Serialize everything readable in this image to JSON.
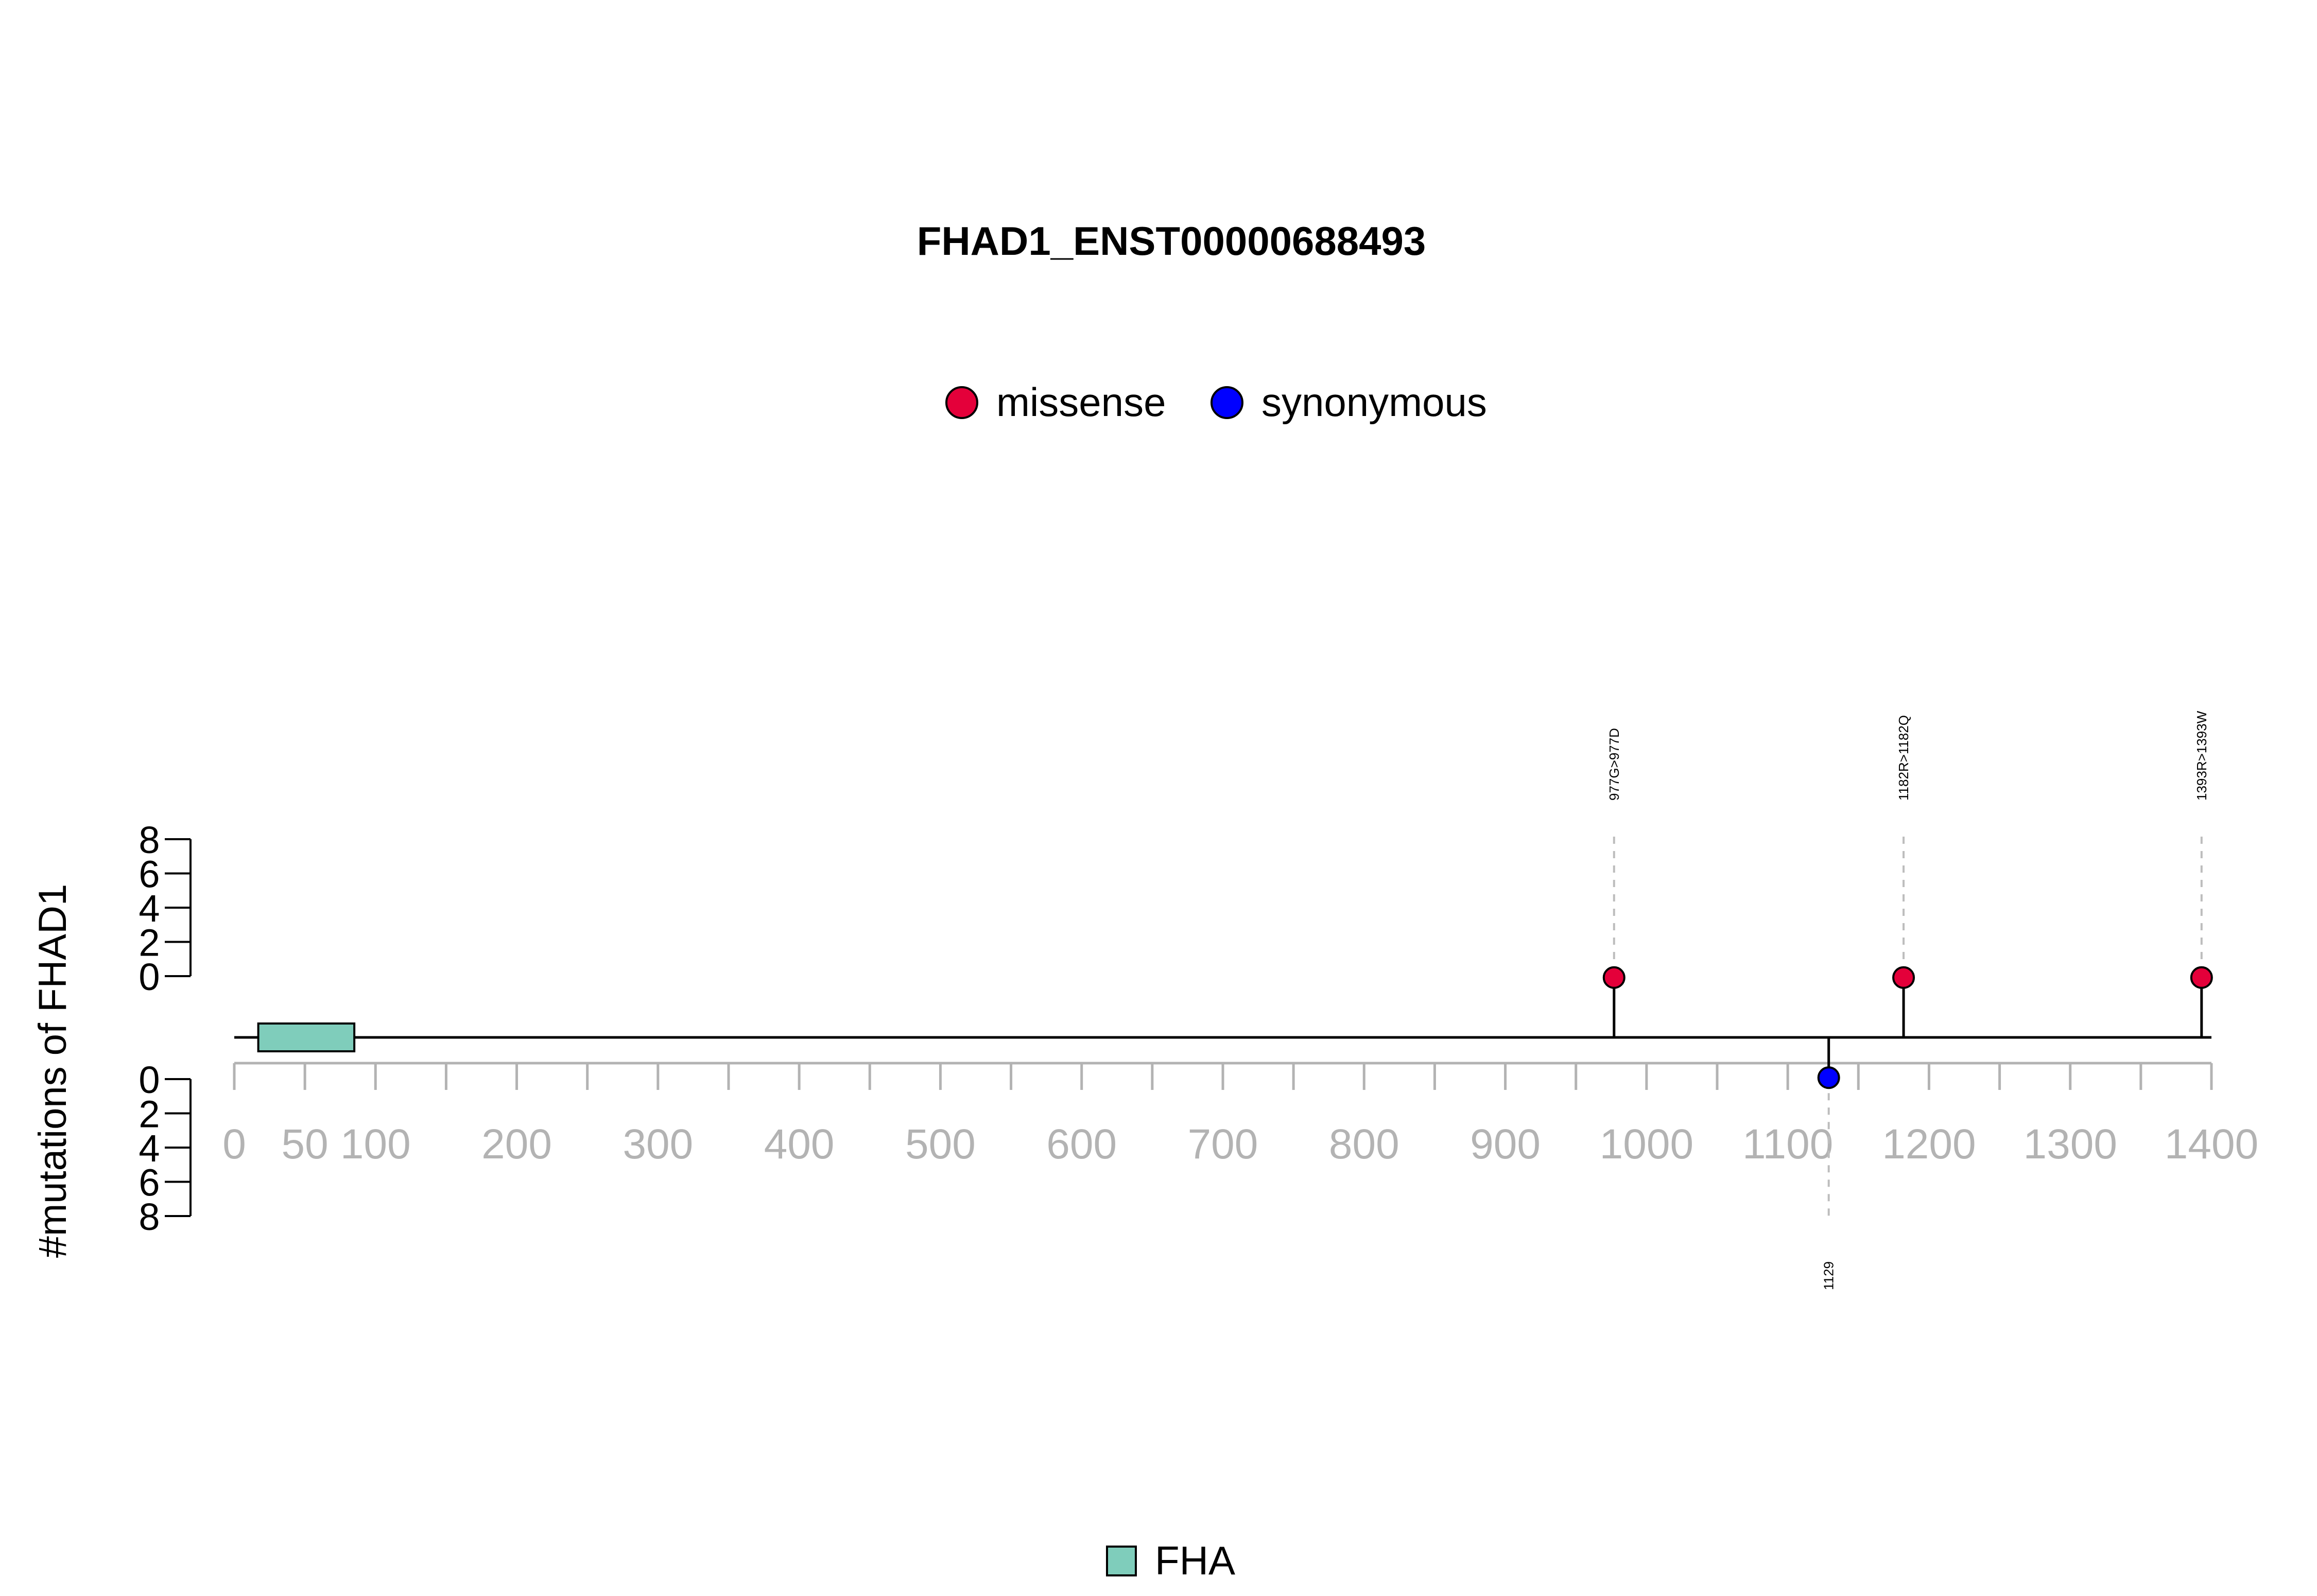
{
  "chart_data": {
    "type": "lollipop",
    "title": "FHAD1_ENST00000688493",
    "ylabel": "#mutations of FHAD1",
    "xlim": [
      0,
      1400
    ],
    "ylim": [
      0,
      8
    ],
    "x_ticks": [
      0,
      50,
      100,
      200,
      300,
      400,
      500,
      600,
      700,
      800,
      900,
      1000,
      1100,
      1200,
      1300,
      1400
    ],
    "x_minor_ticks": [
      150,
      250,
      350,
      450,
      550,
      650,
      750,
      850,
      950,
      1050,
      1150,
      1250,
      1350
    ],
    "y_ticks": [
      0,
      2,
      4,
      6,
      8
    ],
    "mutation_types": [
      {
        "name": "missense",
        "color": "#e4003a"
      },
      {
        "name": "synonymous",
        "color": "#0000ff"
      }
    ],
    "mutations": [
      {
        "position": 977,
        "count": 1,
        "type": "missense",
        "label": "977G>977D",
        "side": "up"
      },
      {
        "position": 1182,
        "count": 1,
        "type": "missense",
        "label": "1182R>1182Q",
        "side": "up"
      },
      {
        "position": 1393,
        "count": 1,
        "type": "missense",
        "label": "1393R>1393W",
        "side": "up"
      },
      {
        "position": 1129,
        "count": 1,
        "type": "synonymous",
        "label": "1129",
        "side": "down"
      }
    ],
    "domains": [
      {
        "name": "FHA",
        "start": 17,
        "end": 85,
        "color": "#7fcdbb"
      }
    ],
    "protein_length": 1400
  }
}
